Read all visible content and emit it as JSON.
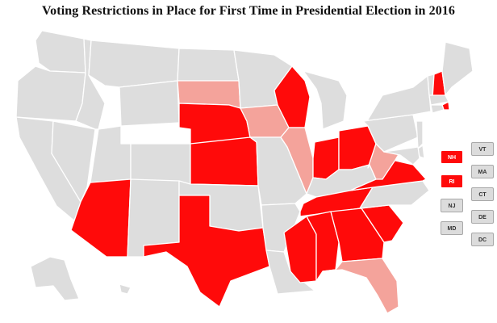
{
  "title": "Voting Restrictions in Place for First Time in Presidential Election in 2016",
  "colors": {
    "none": "#dddddd",
    "strict": "#ff0a0a",
    "partial": "#f4a39b",
    "box_none": "#dcdcdc",
    "label_dark": "#333333",
    "label_light": "#ffffff"
  },
  "map": {
    "states": [
      {
        "id": "WA",
        "status": "none"
      },
      {
        "id": "OR",
        "status": "none"
      },
      {
        "id": "CA",
        "status": "none"
      },
      {
        "id": "NV",
        "status": "none"
      },
      {
        "id": "ID",
        "status": "none"
      },
      {
        "id": "MT",
        "status": "none"
      },
      {
        "id": "WY",
        "status": "none"
      },
      {
        "id": "UT",
        "status": "none"
      },
      {
        "id": "CO",
        "status": "none"
      },
      {
        "id": "AZ",
        "status": "strict"
      },
      {
        "id": "NM",
        "status": "none"
      },
      {
        "id": "ND",
        "status": "none"
      },
      {
        "id": "SD",
        "status": "partial"
      },
      {
        "id": "NE",
        "status": "strict"
      },
      {
        "id": "KS",
        "status": "strict"
      },
      {
        "id": "OK",
        "status": "none"
      },
      {
        "id": "TX",
        "status": "strict"
      },
      {
        "id": "MN",
        "status": "none"
      },
      {
        "id": "IA",
        "status": "partial"
      },
      {
        "id": "MO",
        "status": "none"
      },
      {
        "id": "AR",
        "status": "none"
      },
      {
        "id": "LA",
        "status": "none"
      },
      {
        "id": "WI",
        "status": "strict"
      },
      {
        "id": "IL",
        "status": "partial"
      },
      {
        "id": "MI",
        "status": "none"
      },
      {
        "id": "IN",
        "status": "strict"
      },
      {
        "id": "OH",
        "status": "strict"
      },
      {
        "id": "KY",
        "status": "none"
      },
      {
        "id": "TN",
        "status": "strict"
      },
      {
        "id": "MS",
        "status": "strict"
      },
      {
        "id": "AL",
        "status": "strict"
      },
      {
        "id": "GA",
        "status": "strict"
      },
      {
        "id": "FL",
        "status": "partial"
      },
      {
        "id": "SC",
        "status": "strict"
      },
      {
        "id": "NC",
        "status": "none"
      },
      {
        "id": "VA",
        "status": "strict"
      },
      {
        "id": "WV",
        "status": "partial"
      },
      {
        "id": "PA",
        "status": "none"
      },
      {
        "id": "NY",
        "status": "none"
      },
      {
        "id": "VT",
        "status": "none"
      },
      {
        "id": "NH",
        "status": "strict"
      },
      {
        "id": "ME",
        "status": "none"
      },
      {
        "id": "MA",
        "status": "none"
      },
      {
        "id": "RI",
        "status": "strict"
      },
      {
        "id": "CT",
        "status": "none"
      },
      {
        "id": "NJ",
        "status": "none"
      },
      {
        "id": "DE",
        "status": "none"
      },
      {
        "id": "MD",
        "status": "none"
      },
      {
        "id": "AK",
        "status": "none"
      },
      {
        "id": "HI",
        "status": "none"
      }
    ],
    "small_state_boxes": [
      {
        "label": "NH",
        "status": "strict"
      },
      {
        "label": "RI",
        "status": "strict"
      },
      {
        "label": "NJ",
        "status": "none"
      },
      {
        "label": "MD",
        "status": "none"
      },
      {
        "label": "VT",
        "status": "none"
      },
      {
        "label": "MA",
        "status": "none"
      },
      {
        "label": "CT",
        "status": "none"
      },
      {
        "label": "DE",
        "status": "none"
      },
      {
        "label": "DC",
        "status": "none"
      }
    ]
  }
}
